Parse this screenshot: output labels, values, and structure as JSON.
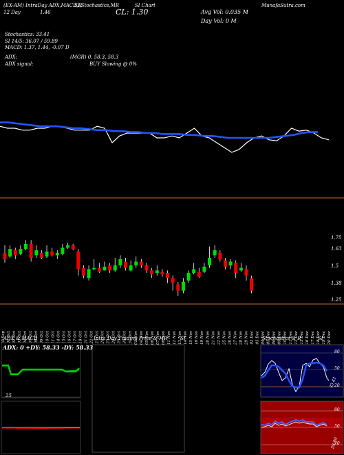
{
  "header": {
    "l1a": "(EX-AM) IntraDay ADX,MACD,R",
    "l1b": "SI,Stochastics,MR",
    "l1c": "SI Chart",
    "l1d": "MunafaSutra.com",
    "l2a": "12 Day",
    "l2b": "1.46",
    "close": "CL: 1.30",
    "avg_vol": "Avg Vol: 0.035 M",
    "day_vol": "Day Vol: 0   M",
    "stoch": "Stochastics: 33.41",
    "si": "SI 14/5: 36.07 / 59.89",
    "macd": "MACD: 1.37, 1.44, -0.07 D",
    "adx": "ADX:",
    "mgr": "(MGR) 0, 58.3, 58.3",
    "adx_signal": "ADX  signal:",
    "buy": "BUY Slowing @ 0%"
  },
  "price_axis": [
    "1.75",
    "1.63",
    "1.5",
    "1.38",
    "1.25"
  ],
  "date_labels": [
    "30 Sep",
    "01 Oct",
    "02 Oct",
    "03 Oct",
    "04 Oct",
    "07 Oct",
    "08 Oct",
    "09 Oct",
    "10 Oct",
    "11 Oct",
    "14 Oct",
    "15 Oct",
    "16 Oct",
    "17 Oct",
    "18 Oct",
    "21 Oct",
    "22 Oct",
    "23 Oct",
    "24 Oct",
    "25 Oct",
    "28 Oct",
    "29 Oct",
    "30 Oct",
    "31 Oct",
    "01 Nov",
    "04 Nov",
    "05 Nov",
    "06 Nov",
    "07 Nov",
    "08 Nov",
    "11 Nov",
    "12 Nov",
    "13 Nov",
    "14 Nov",
    "15 Nov",
    "18 Nov",
    "19 Nov",
    "20 Nov",
    "21 Nov",
    "22 Nov",
    "25 Nov",
    "26 Nov",
    "27 Nov",
    "28 Nov",
    "29 Nov",
    "02 Dec",
    "03 Dec",
    "04 Dec",
    "05 Dec",
    "06 Dec",
    "09 Dec",
    "10 Dec",
    "11 Dec",
    "12 Dec",
    "13 Dec",
    "16 Dec",
    "17 Dec",
    "18 Dec",
    "19 Dec",
    "20 Dec"
  ],
  "panels": {
    "adx_title": "ADX  & MACD",
    "adx_values": "ADX: 0  +DY: 58.33  -DY: 58.33",
    "adx_25": "25",
    "intraday_title": "Intra Day Trading Price  & MR",
    "intraday_si": "SI",
    "stoch_title": "Stochastics & R",
    "stoch_si": "SI",
    "stoch_ticks": [
      "80",
      "50",
      "20"
    ],
    "stoch_value": "33.41",
    "rsi_ticks": [
      "80",
      "50",
      "20"
    ],
    "rsi_value": "59.89"
  },
  "colors": {
    "up": "#00dd00",
    "down": "#ee0000",
    "blue": "#2255ff",
    "orange": "#c87020"
  },
  "chart_data": [
    {
      "type": "line",
      "title": "",
      "series": [
        {
          "name": "",
          "values": [
            0.62,
            0.6,
            0.6,
            0.58,
            0.58,
            0.6,
            0.6,
            0.62,
            0.62,
            0.6,
            0.58,
            0.58,
            0.58,
            0.62,
            0.6,
            0.45,
            0.52,
            0.55,
            0.55,
            0.55,
            0.55,
            0.5,
            0.5,
            0.52,
            0.5,
            0.55,
            0.6,
            0.52,
            0.5,
            0.45,
            0.4,
            0.35,
            0.38,
            0.45,
            0.5,
            0.52,
            0.48,
            0.47,
            0.52,
            0.6,
            0.57,
            0.58,
            0.55,
            0.5,
            0.48
          ]
        },
        {
          "name": "",
          "values": [
            0.66,
            0.66,
            0.65,
            0.64,
            0.63,
            0.62,
            0.62,
            0.62,
            0.61,
            0.6,
            0.6,
            0.59,
            0.58,
            0.58,
            0.57,
            0.57,
            0.56,
            0.56,
            0.55,
            0.55,
            0.54,
            0.54,
            0.54,
            0.53,
            0.53,
            0.52,
            0.52,
            0.51,
            0.5,
            0.5,
            0.5,
            0.5,
            0.5,
            0.5,
            0.51,
            0.52,
            0.53,
            0.55,
            0.56,
            0.56
          ]
        }
      ]
    },
    {
      "type": "bar",
      "title": "",
      "ylim": [
        1.2,
        1.8
      ],
      "ohlc": [
        [
          1.6,
          1.55,
          1.66,
          1.52
        ],
        [
          1.57,
          1.63,
          1.66,
          1.56
        ],
        [
          1.62,
          1.58,
          1.64,
          1.55
        ],
        [
          1.59,
          1.63,
          1.66,
          1.58
        ],
        [
          1.63,
          1.67,
          1.7,
          1.62
        ],
        [
          1.67,
          1.56,
          1.7,
          1.53
        ],
        [
          1.58,
          1.62,
          1.66,
          1.56
        ],
        [
          1.6,
          1.56,
          1.62,
          1.55
        ],
        [
          1.57,
          1.61,
          1.66,
          1.56
        ],
        [
          1.61,
          1.58,
          1.64,
          1.57
        ],
        [
          1.58,
          1.6,
          1.62,
          1.55
        ],
        [
          1.59,
          1.64,
          1.67,
          1.58
        ],
        [
          1.64,
          1.66,
          1.68,
          1.63
        ],
        [
          1.66,
          1.63,
          1.67,
          1.62
        ],
        [
          1.61,
          1.47,
          1.63,
          1.42
        ],
        [
          1.48,
          1.42,
          1.5,
          1.4
        ],
        [
          1.4,
          1.47,
          1.5,
          1.38
        ],
        [
          1.47,
          1.48,
          1.55,
          1.46
        ],
        [
          1.48,
          1.45,
          1.52,
          1.44
        ],
        [
          1.46,
          1.49,
          1.53,
          1.46
        ],
        [
          1.5,
          1.46,
          1.52,
          1.44
        ],
        [
          1.46,
          1.5,
          1.56,
          1.45
        ],
        [
          1.5,
          1.55,
          1.58,
          1.48
        ],
        [
          1.53,
          1.48,
          1.56,
          1.46
        ],
        [
          1.46,
          1.5,
          1.54,
          1.45
        ],
        [
          1.5,
          1.53,
          1.57,
          1.48
        ],
        [
          1.53,
          1.5,
          1.55,
          1.48
        ],
        [
          1.5,
          1.46,
          1.52,
          1.44
        ],
        [
          1.46,
          1.43,
          1.48,
          1.4
        ],
        [
          1.44,
          1.46,
          1.5,
          1.42
        ],
        [
          1.45,
          1.43,
          1.47,
          1.41
        ],
        [
          1.44,
          1.4,
          1.46,
          1.36
        ],
        [
          1.4,
          1.36,
          1.42,
          1.3
        ],
        [
          1.35,
          1.3,
          1.37,
          1.26
        ],
        [
          1.3,
          1.37,
          1.4,
          1.28
        ],
        [
          1.38,
          1.44,
          1.46,
          1.36
        ],
        [
          1.44,
          1.47,
          1.52,
          1.43
        ],
        [
          1.45,
          1.41,
          1.48,
          1.4
        ],
        [
          1.45,
          1.49,
          1.52,
          1.44
        ],
        [
          1.5,
          1.56,
          1.65,
          1.48
        ],
        [
          1.58,
          1.62,
          1.66,
          1.56
        ],
        [
          1.6,
          1.55,
          1.62,
          1.53
        ],
        [
          1.54,
          1.49,
          1.56,
          1.47
        ],
        [
          1.5,
          1.53,
          1.55,
          1.47
        ],
        [
          1.52,
          1.44,
          1.54,
          1.4
        ],
        [
          1.46,
          1.48,
          1.52,
          1.45
        ],
        [
          1.47,
          1.42,
          1.5,
          1.38
        ],
        [
          1.4,
          1.3,
          1.42,
          1.28
        ]
      ]
    }
  ]
}
